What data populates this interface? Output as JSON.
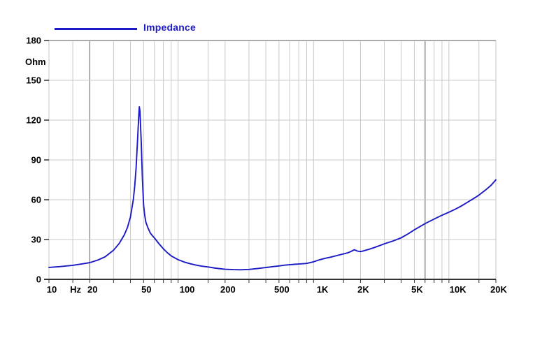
{
  "legend": {
    "label": "Impedance"
  },
  "colors": {
    "curve": "#1b1ac6",
    "legend_text": "#1b1ac6",
    "grid": "#c9c9c9",
    "grid_dark": "#999999",
    "axis": "#333333",
    "border_top": "#ababab",
    "border_side": "#c4c4c4",
    "background": "#ffffff",
    "tick_label": "#000000"
  },
  "chart_data": {
    "type": "line",
    "title": "",
    "xlabel": "Hz",
    "ylabel": "Ohm",
    "x_scale": "log",
    "xlim": [
      10,
      20000
    ],
    "ylim": [
      0,
      180
    ],
    "grid": true,
    "legend_position": "top-left",
    "y_ticks": [
      0,
      30,
      60,
      90,
      120,
      150,
      180
    ],
    "x_tick_labels": [
      {
        "label": "10",
        "f": 10
      },
      {
        "label": "Hz",
        "f": 15
      },
      {
        "label": "20",
        "f": 20
      },
      {
        "label": "50",
        "f": 50
      },
      {
        "label": "100",
        "f": 100
      },
      {
        "label": "200",
        "f": 200
      },
      {
        "label": "500",
        "f": 500
      },
      {
        "label": "1K",
        "f": 1000
      },
      {
        "label": "2K",
        "f": 2000
      },
      {
        "label": "5K",
        "f": 5000
      },
      {
        "label": "10K",
        "f": 10000
      },
      {
        "label": "20K",
        "f": 20000
      }
    ],
    "minor_gridline_multipliers": [
      1.5,
      2,
      3,
      4,
      5,
      6,
      7,
      8,
      9
    ],
    "dark_gridlines_hz": [
      20,
      6000
    ],
    "series": [
      {
        "name": "Impedance",
        "color": "#1b1ac6",
        "units": "Ohm",
        "points": [
          [
            10,
            9
          ],
          [
            12,
            9.6
          ],
          [
            15,
            10.6
          ],
          [
            18,
            11.8
          ],
          [
            20,
            12.6
          ],
          [
            23,
            14.5
          ],
          [
            26,
            17
          ],
          [
            30,
            22
          ],
          [
            33,
            27
          ],
          [
            36,
            33.5
          ],
          [
            38,
            39
          ],
          [
            40,
            47
          ],
          [
            42,
            60
          ],
          [
            43,
            70
          ],
          [
            44,
            84
          ],
          [
            45,
            102
          ],
          [
            46,
            122
          ],
          [
            46.5,
            130
          ],
          [
            47,
            127
          ],
          [
            48,
            104
          ],
          [
            49,
            76
          ],
          [
            50,
            56
          ],
          [
            51,
            48
          ],
          [
            52,
            43
          ],
          [
            54,
            38.5
          ],
          [
            56,
            35
          ],
          [
            58,
            33
          ],
          [
            60,
            31.3
          ],
          [
            65,
            26.8
          ],
          [
            70,
            23
          ],
          [
            75,
            20
          ],
          [
            80,
            17.7
          ],
          [
            90,
            14.8
          ],
          [
            100,
            13
          ],
          [
            110,
            11.8
          ],
          [
            120,
            10.9
          ],
          [
            135,
            9.9
          ],
          [
            150,
            9.3
          ],
          [
            170,
            8.4
          ],
          [
            200,
            7.6
          ],
          [
            230,
            7.3
          ],
          [
            260,
            7.2
          ],
          [
            300,
            7.5
          ],
          [
            350,
            8.2
          ],
          [
            400,
            8.9
          ],
          [
            450,
            9.6
          ],
          [
            500,
            10.1
          ],
          [
            550,
            10.7
          ],
          [
            600,
            11
          ],
          [
            650,
            11.3
          ],
          [
            700,
            11.5
          ],
          [
            800,
            12
          ],
          [
            900,
            13.2
          ],
          [
            1000,
            14.8
          ],
          [
            1100,
            15.9
          ],
          [
            1200,
            16.7
          ],
          [
            1400,
            18.4
          ],
          [
            1600,
            19.9
          ],
          [
            1700,
            21
          ],
          [
            1800,
            22.3
          ],
          [
            1900,
            21.3
          ],
          [
            2000,
            20.9
          ],
          [
            2100,
            21.4
          ],
          [
            2300,
            22.6
          ],
          [
            2500,
            23.8
          ],
          [
            2800,
            25.6
          ],
          [
            3000,
            26.8
          ],
          [
            3500,
            29
          ],
          [
            4000,
            31.3
          ],
          [
            4500,
            34.3
          ],
          [
            5000,
            37.3
          ],
          [
            5500,
            39.8
          ],
          [
            6000,
            42
          ],
          [
            6500,
            43.8
          ],
          [
            7000,
            45.4
          ],
          [
            8000,
            48.3
          ],
          [
            9000,
            50.6
          ],
          [
            10000,
            52.8
          ],
          [
            11000,
            55
          ],
          [
            12000,
            57.3
          ],
          [
            13500,
            60.5
          ],
          [
            15000,
            63.5
          ],
          [
            17000,
            67.8
          ],
          [
            18500,
            71
          ],
          [
            20000,
            75
          ]
        ]
      }
    ]
  }
}
